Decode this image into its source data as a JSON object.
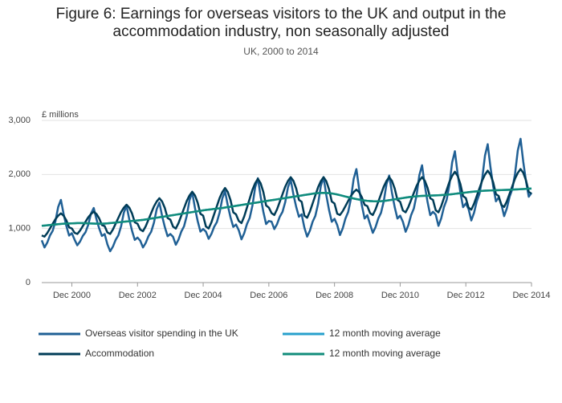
{
  "chart_data": {
    "type": "line",
    "title": "Figure 6: Earnings for overseas visitors to the UK and output in the accommodation industry, non seasonally adjusted",
    "subtitle": "UK, 2000 to 2014",
    "y_label": "£ millions",
    "x": [
      "2000-01",
      "2000-02",
      "2000-03",
      "2000-04",
      "2000-05",
      "2000-06",
      "2000-07",
      "2000-08",
      "2000-09",
      "2000-10",
      "2000-11",
      "2000-12",
      "2001-01",
      "2001-02",
      "2001-03",
      "2001-04",
      "2001-05",
      "2001-06",
      "2001-07",
      "2001-08",
      "2001-09",
      "2001-10",
      "2001-11",
      "2001-12",
      "2002-01",
      "2002-02",
      "2002-03",
      "2002-04",
      "2002-05",
      "2002-06",
      "2002-07",
      "2002-08",
      "2002-09",
      "2002-10",
      "2002-11",
      "2002-12",
      "2003-01",
      "2003-02",
      "2003-03",
      "2003-04",
      "2003-05",
      "2003-06",
      "2003-07",
      "2003-08",
      "2003-09",
      "2003-10",
      "2003-11",
      "2003-12",
      "2004-01",
      "2004-02",
      "2004-03",
      "2004-04",
      "2004-05",
      "2004-06",
      "2004-07",
      "2004-08",
      "2004-09",
      "2004-10",
      "2004-11",
      "2004-12",
      "2005-01",
      "2005-02",
      "2005-03",
      "2005-04",
      "2005-05",
      "2005-06",
      "2005-07",
      "2005-08",
      "2005-09",
      "2005-10",
      "2005-11",
      "2005-12",
      "2006-01",
      "2006-02",
      "2006-03",
      "2006-04",
      "2006-05",
      "2006-06",
      "2006-07",
      "2006-08",
      "2006-09",
      "2006-10",
      "2006-11",
      "2006-12",
      "2007-01",
      "2007-02",
      "2007-03",
      "2007-04",
      "2007-05",
      "2007-06",
      "2007-07",
      "2007-08",
      "2007-09",
      "2007-10",
      "2007-11",
      "2007-12",
      "2008-01",
      "2008-02",
      "2008-03",
      "2008-04",
      "2008-05",
      "2008-06",
      "2008-07",
      "2008-08",
      "2008-09",
      "2008-10",
      "2008-11",
      "2008-12",
      "2009-01",
      "2009-02",
      "2009-03",
      "2009-04",
      "2009-05",
      "2009-06",
      "2009-07",
      "2009-08",
      "2009-09",
      "2009-10",
      "2009-11",
      "2009-12",
      "2010-01",
      "2010-02",
      "2010-03",
      "2010-04",
      "2010-05",
      "2010-06",
      "2010-07",
      "2010-08",
      "2010-09",
      "2010-10",
      "2010-11",
      "2010-12",
      "2011-01",
      "2011-02",
      "2011-03",
      "2011-04",
      "2011-05",
      "2011-06",
      "2011-07",
      "2011-08",
      "2011-09",
      "2011-10",
      "2011-11",
      "2011-12",
      "2012-01",
      "2012-02",
      "2012-03",
      "2012-04",
      "2012-05",
      "2012-06",
      "2012-07",
      "2012-08",
      "2012-09",
      "2012-10",
      "2012-11",
      "2012-12",
      "2013-01",
      "2013-02",
      "2013-03",
      "2013-04",
      "2013-05",
      "2013-06",
      "2013-07",
      "2013-08",
      "2013-09",
      "2013-10",
      "2013-11",
      "2013-12",
      "2014-01",
      "2014-02",
      "2014-03",
      "2014-04",
      "2014-05",
      "2014-06",
      "2014-07",
      "2014-08",
      "2014-09",
      "2014-10",
      "2014-11",
      "2014-12"
    ],
    "xticks": [
      {
        "value": "2000-12",
        "label": "Dec 2000"
      },
      {
        "value": "2002-12",
        "label": "Dec 2002"
      },
      {
        "value": "2004-12",
        "label": "Dec 2004"
      },
      {
        "value": "2006-12",
        "label": "Dec 2006"
      },
      {
        "value": "2008-12",
        "label": "Dec 2008"
      },
      {
        "value": "2010-12",
        "label": "Dec 2010"
      },
      {
        "value": "2012-12",
        "label": "Dec 2012"
      },
      {
        "value": "2014-12",
        "label": "Dec 2014"
      }
    ],
    "ylim": [
      0,
      3000
    ],
    "yticks": [
      0,
      {
        "value": 1000,
        "label": "1,000"
      },
      {
        "value": 2000,
        "label": "2,000"
      },
      {
        "value": 3000,
        "label": "3,000"
      }
    ],
    "grid": true,
    "series": [
      {
        "name": "Overseas visitor spending in the UK",
        "color": "#206095",
        "values": [
          782,
          650,
          738,
          870,
          958,
          1134,
          1398,
          1530,
          1266,
          1046,
          870,
          914,
          794,
          690,
          759,
          863,
          932,
          1070,
          1277,
          1380,
          1173,
          1001,
          863,
          897,
          706,
          580,
          664,
          790,
          874,
          1042,
          1294,
          1420,
          1168,
          958,
          790,
          832,
          775,
          650,
          733,
          858,
          941,
          1107,
          1356,
          1480,
          1231,
          1024,
          858,
          899,
          846,
          700,
          797,
          943,
          1040,
          1234,
          1525,
          1670,
          1379,
          1137,
          943,
          991,
          942,
          810,
          898,
          1030,
          1118,
          1294,
          1558,
          1690,
          1426,
          1206,
          1030,
          1074,
          970,
          800,
          913,
          1083,
          1196,
          1422,
          1761,
          1930,
          1591,
          1309,
          1083,
          1139,
          1127,
          990,
          1081,
          1218,
          1309,
          1491,
          1764,
          1900,
          1627,
          1400,
          1218,
          1263,
          1015,
          850,
          960,
          1125,
          1235,
          1455,
          1785,
          1950,
          1620,
          1345,
          1125,
          1180,
          1063,
          880,
          1002,
          1185,
          1307,
          1551,
          1917,
          2100,
          1734,
          1429,
          1185,
          1246,
          1079,
          920,
          1026,
          1185,
          1291,
          1503,
          1821,
          1980,
          1662,
          1397,
          1185,
          1238,
          1125,
          940,
          1063,
          1248,
          1371,
          1617,
          1986,
          2170,
          1801,
          1494,
          1248,
          1309,
          1257,
          1050,
          1188,
          1395,
          1533,
          1809,
          2223,
          2430,
          2016,
          1671,
          1395,
          1464,
          1362,
          1150,
          1291,
          1503,
          1644,
          1926,
          2349,
          2560,
          2137,
          1785,
          1503,
          1573,
          1445,
          1230,
          1373,
          1588,
          1731,
          2017,
          2446,
          2660,
          2231,
          1874,
          1588,
          1659
        ]
      },
      {
        "name": "12 month moving average",
        "color": "#27a0cc",
        "values": [
          1050,
          1055,
          1060,
          1065,
          1070,
          1075,
          1080,
          1085,
          1090,
          1092,
          1094,
          1096,
          1098,
          1100,
          1100,
          1100,
          1098,
          1096,
          1094,
          1092,
          1090,
          1090,
          1090,
          1092,
          1095,
          1100,
          1105,
          1110,
          1115,
          1120,
          1125,
          1130,
          1135,
          1140,
          1145,
          1150,
          1155,
          1160,
          1168,
          1176,
          1184,
          1192,
          1200,
          1208,
          1216,
          1224,
          1232,
          1240,
          1248,
          1256,
          1264,
          1272,
          1280,
          1288,
          1296,
          1304,
          1312,
          1320,
          1328,
          1336,
          1344,
          1350,
          1356,
          1362,
          1368,
          1374,
          1380,
          1388,
          1396,
          1404,
          1412,
          1420,
          1428,
          1436,
          1444,
          1452,
          1460,
          1468,
          1476,
          1484,
          1492,
          1500,
          1508,
          1516,
          1524,
          1532,
          1540,
          1548,
          1556,
          1564,
          1572,
          1580,
          1588,
          1596,
          1604,
          1612,
          1620,
          1628,
          1636,
          1644,
          1650,
          1655,
          1658,
          1660,
          1658,
          1654,
          1648,
          1640,
          1630,
          1618,
          1605,
          1592,
          1580,
          1568,
          1556,
          1545,
          1535,
          1526,
          1518,
          1512,
          1508,
          1505,
          1504,
          1504,
          1506,
          1510,
          1516,
          1524,
          1532,
          1540,
          1548,
          1556,
          1564,
          1572,
          1580,
          1586,
          1592,
          1596,
          1600,
          1604,
          1606,
          1608,
          1610,
          1612,
          1614,
          1616,
          1618,
          1622,
          1626,
          1630,
          1636,
          1642,
          1648,
          1654,
          1660,
          1666,
          1672,
          1678,
          1684,
          1688,
          1692,
          1696,
          1700,
          1702,
          1704,
          1706,
          1708,
          1710,
          1712,
          1714,
          1716,
          1718,
          1720,
          1722,
          1725,
          1728,
          1731,
          1734,
          1737,
          1740
        ]
      },
      {
        "name": "Accommodation",
        "color": "#003c57",
        "values": [
          872,
          850,
          915,
          1001,
          1087,
          1173,
          1237,
          1280,
          1237,
          1151,
          1022,
          1001,
          921,
          900,
          962,
          1044,
          1126,
          1208,
          1269,
          1310,
          1269,
          1187,
          1064,
          1044,
          927,
          900,
          981,
          1089,
          1197,
          1305,
          1386,
          1440,
          1386,
          1278,
          1116,
          1089,
          981,
          950,
          1042,
          1164,
          1286,
          1408,
          1499,
          1560,
          1499,
          1377,
          1194,
          1164,
          1034,
          1000,
          1102,
          1238,
          1374,
          1510,
          1612,
          1680,
          1612,
          1476,
          1272,
          1238,
          1038,
          1000,
          1113,
          1263,
          1413,
          1563,
          1675,
          1750,
          1675,
          1525,
          1300,
          1263,
          1141,
          1100,
          1223,
          1387,
          1551,
          1715,
          1838,
          1920,
          1838,
          1674,
          1428,
          1387,
          1285,
          1250,
          1355,
          1495,
          1635,
          1775,
          1880,
          1950,
          1880,
          1740,
          1530,
          1495,
          1238,
          1200,
          1313,
          1463,
          1613,
          1763,
          1875,
          1950,
          1875,
          1725,
          1500,
          1463,
          1274,
          1250,
          1321,
          1415,
          1509,
          1603,
          1673,
          1720,
          1673,
          1579,
          1438,
          1415,
          1285,
          1250,
          1355,
          1495,
          1635,
          1775,
          1880,
          1950,
          1880,
          1740,
          1530,
          1495,
          1333,
          1300,
          1398,
          1528,
          1658,
          1788,
          1885,
          1950,
          1885,
          1755,
          1560,
          1528,
          1338,
          1300,
          1413,
          1563,
          1713,
          1863,
          1975,
          2050,
          1975,
          1825,
          1600,
          1563,
          1386,
          1350,
          1458,
          1602,
          1746,
          1890,
          1998,
          2070,
          1998,
          1854,
          1638,
          1602,
          1435,
          1400,
          1505,
          1645,
          1785,
          1925,
          2030,
          2100,
          2030,
          1890,
          1680,
          1645
        ]
      },
      {
        "name": "12 month moving average",
        "color": "#118c7b",
        "values": [
          1050,
          1055,
          1060,
          1065,
          1070,
          1075,
          1080,
          1085,
          1090,
          1092,
          1094,
          1096,
          1098,
          1100,
          1100,
          1100,
          1098,
          1096,
          1094,
          1092,
          1090,
          1090,
          1090,
          1092,
          1095,
          1100,
          1105,
          1110,
          1115,
          1120,
          1125,
          1130,
          1135,
          1140,
          1145,
          1150,
          1155,
          1160,
          1168,
          1176,
          1184,
          1192,
          1200,
          1208,
          1216,
          1224,
          1232,
          1240,
          1248,
          1256,
          1264,
          1272,
          1280,
          1288,
          1296,
          1304,
          1312,
          1320,
          1328,
          1336,
          1344,
          1350,
          1356,
          1362,
          1368,
          1374,
          1380,
          1388,
          1396,
          1404,
          1412,
          1420,
          1428,
          1436,
          1444,
          1452,
          1460,
          1468,
          1476,
          1484,
          1492,
          1500,
          1508,
          1516,
          1524,
          1532,
          1540,
          1548,
          1556,
          1564,
          1572,
          1580,
          1588,
          1596,
          1604,
          1612,
          1620,
          1628,
          1636,
          1644,
          1650,
          1655,
          1658,
          1660,
          1658,
          1654,
          1648,
          1640,
          1630,
          1618,
          1605,
          1592,
          1580,
          1568,
          1556,
          1545,
          1535,
          1526,
          1518,
          1512,
          1508,
          1505,
          1504,
          1504,
          1506,
          1510,
          1516,
          1524,
          1532,
          1540,
          1548,
          1556,
          1564,
          1572,
          1580,
          1586,
          1592,
          1596,
          1600,
          1604,
          1606,
          1608,
          1610,
          1612,
          1614,
          1616,
          1618,
          1622,
          1626,
          1630,
          1636,
          1642,
          1648,
          1654,
          1660,
          1666,
          1672,
          1678,
          1684,
          1688,
          1692,
          1696,
          1700,
          1702,
          1704,
          1706,
          1708,
          1710,
          1712,
          1714,
          1716,
          1718,
          1720,
          1722,
          1725,
          1728,
          1731,
          1734,
          1737,
          1740
        ]
      }
    ]
  }
}
